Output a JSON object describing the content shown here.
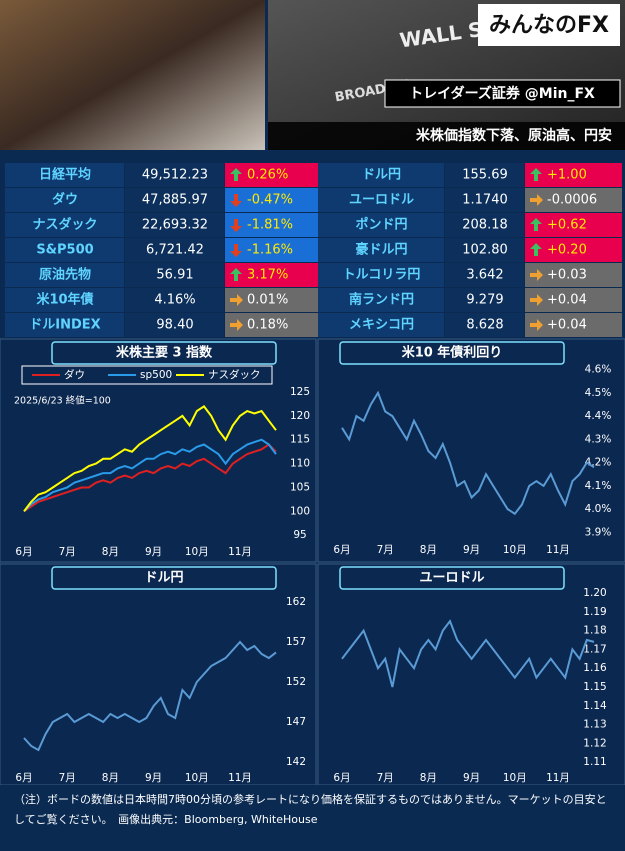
{
  "header": {
    "logo": "みんなのFX",
    "account": "トレイダーズ証券 @Min_FX",
    "headline": "米株価指数下落、原油高、円安",
    "sign1": "WALL ST",
    "sign2": "BROAD ST"
  },
  "table": {
    "left": [
      {
        "name": "日経平均",
        "value": "49,512.23",
        "change": "0.26%",
        "dir": "up"
      },
      {
        "name": "ダウ",
        "value": "47,885.97",
        "change": "-0.47%",
        "dir": "down"
      },
      {
        "name": "ナスダック",
        "value": "22,693.32",
        "change": "-1.81%",
        "dir": "down"
      },
      {
        "name": "S&P500",
        "value": "6,721.42",
        "change": "-1.16%",
        "dir": "down"
      },
      {
        "name": "原油先物",
        "value": "56.91",
        "change": "3.17%",
        "dir": "up"
      },
      {
        "name": "米10年債",
        "value": "4.16%",
        "change": "0.01%",
        "dir": "flat"
      },
      {
        "name": "ドルINDEX",
        "value": "98.40",
        "change": "0.18%",
        "dir": "flat"
      }
    ],
    "right": [
      {
        "name": "ドル円",
        "value": "155.69",
        "change": "+1.00",
        "dir": "up"
      },
      {
        "name": "ユーロドル",
        "value": "1.1740",
        "change": "-0.0006",
        "dir": "flat"
      },
      {
        "name": "ポンド円",
        "value": "208.18",
        "change": "+0.62",
        "dir": "up"
      },
      {
        "name": "豪ドル円",
        "value": "102.80",
        "change": "+0.20",
        "dir": "up"
      },
      {
        "name": "トルコリラ円",
        "value": "3.642",
        "change": "+0.03",
        "dir": "flat"
      },
      {
        "name": "南ランド円",
        "value": "9.279",
        "change": "+0.04",
        "dir": "flat"
      },
      {
        "name": "メキシコ円",
        "value": "8.628",
        "change": "+0.04",
        "dir": "flat"
      }
    ]
  },
  "chart_data": [
    {
      "type": "line",
      "title": "米株主要 3 指数",
      "annotation": "2025/6/23 終値=100",
      "categories": [
        "6月",
        null,
        null,
        null,
        null,
        null,
        "7月",
        null,
        null,
        null,
        null,
        null,
        "8月",
        null,
        null,
        null,
        null,
        null,
        "9月",
        null,
        null,
        null,
        null,
        null,
        "10月",
        null,
        null,
        null,
        null,
        null,
        "11月",
        null,
        null,
        null,
        null,
        null
      ],
      "series": [
        {
          "name": "ダウ",
          "color": "#e02020",
          "values": [
            100,
            101,
            102,
            102.5,
            103,
            103.5,
            104,
            104.5,
            105,
            105,
            106,
            106.5,
            106,
            107,
            107.5,
            107,
            108,
            108.5,
            108,
            109,
            109.5,
            109,
            110,
            109.5,
            110.5,
            111,
            110,
            109,
            108,
            110,
            111,
            112,
            112.5,
            113,
            114,
            112.5
          ]
        },
        {
          "name": "sp500",
          "color": "#2a9be8",
          "values": [
            100,
            101.5,
            102.5,
            103,
            104,
            104.5,
            105,
            106,
            106.5,
            107,
            107.5,
            108,
            108,
            109,
            109.5,
            109,
            110,
            111,
            111,
            112,
            112.5,
            112,
            113,
            112.5,
            113.5,
            114,
            113,
            112,
            110,
            112,
            113,
            114,
            114.5,
            115,
            114,
            112
          ]
        },
        {
          "name": "ナスダック",
          "color": "#ffff00",
          "values": [
            100,
            102,
            103.5,
            104,
            105,
            106,
            107,
            108,
            108.5,
            109.5,
            110,
            111,
            111,
            112,
            113,
            112.5,
            114,
            115,
            116,
            117,
            118,
            119,
            120,
            118,
            121,
            122,
            120,
            117,
            115,
            118,
            120,
            121,
            120.5,
            121,
            119,
            117
          ]
        }
      ],
      "ylim": [
        93,
        127
      ],
      "yticks": [
        95,
        100,
        105,
        110,
        115,
        120,
        125
      ]
    },
    {
      "type": "line",
      "title": "米10 年債利回り",
      "categories": [
        "6月",
        null,
        null,
        null,
        null,
        null,
        "7月",
        null,
        null,
        null,
        null,
        null,
        "8月",
        null,
        null,
        null,
        null,
        null,
        "9月",
        null,
        null,
        null,
        null,
        null,
        "10月",
        null,
        null,
        null,
        null,
        null,
        "11月",
        null,
        null,
        null,
        null,
        null
      ],
      "series": [
        {
          "color": "#5b9bd5",
          "values": [
            4.35,
            4.3,
            4.4,
            4.38,
            4.45,
            4.5,
            4.42,
            4.4,
            4.35,
            4.3,
            4.38,
            4.32,
            4.25,
            4.22,
            4.28,
            4.2,
            4.1,
            4.12,
            4.05,
            4.08,
            4.15,
            4.1,
            4.05,
            4.0,
            3.98,
            4.02,
            4.1,
            4.12,
            4.1,
            4.15,
            4.08,
            4.02,
            4.12,
            4.15,
            4.2,
            4.18
          ]
        }
      ],
      "ylim": [
        3.88,
        4.62
      ],
      "yticks": [
        {
          "value": 3.9,
          "label": "3.9%"
        },
        {
          "value": 4.0,
          "label": "4.0%"
        },
        {
          "value": 4.1,
          "label": "4.1%"
        },
        {
          "value": 4.2,
          "label": "4.2%"
        },
        {
          "value": 4.3,
          "label": "4.3%"
        },
        {
          "value": 4.4,
          "label": "4.4%"
        },
        {
          "value": 4.5,
          "label": "4.5%"
        },
        {
          "value": 4.6,
          "label": "4.6%"
        }
      ]
    },
    {
      "type": "line",
      "title": "ドル円",
      "categories": [
        "6月",
        null,
        null,
        null,
        null,
        null,
        "7月",
        null,
        null,
        null,
        null,
        null,
        "8月",
        null,
        null,
        null,
        null,
        null,
        "9月",
        null,
        null,
        null,
        null,
        null,
        "10月",
        null,
        null,
        null,
        null,
        null,
        "11月",
        null,
        null,
        null,
        null,
        null
      ],
      "series": [
        {
          "color": "#5b9bd5",
          "values": [
            145,
            144,
            143.5,
            145.5,
            147,
            147.5,
            148,
            147,
            147.5,
            148,
            147.5,
            147,
            148,
            147.5,
            148,
            147.5,
            147,
            147.5,
            149,
            150,
            148,
            147.5,
            151,
            150,
            152,
            153,
            154,
            154.5,
            155,
            156,
            157,
            156,
            156.5,
            155.5,
            155,
            155.7
          ]
        }
      ],
      "ylim": [
        140,
        164
      ],
      "yticks": [
        142,
        147,
        152,
        157,
        162
      ]
    },
    {
      "type": "line",
      "title": "ユーロドル",
      "categories": [
        "6月",
        null,
        null,
        null,
        null,
        null,
        "7月",
        null,
        null,
        null,
        null,
        null,
        "8月",
        null,
        null,
        null,
        null,
        null,
        "9月",
        null,
        null,
        null,
        null,
        null,
        "10月",
        null,
        null,
        null,
        null,
        null,
        "11月",
        null,
        null,
        null,
        null,
        null
      ],
      "series": [
        {
          "color": "#5b9bd5",
          "values": [
            1.165,
            1.17,
            1.175,
            1.18,
            1.17,
            1.16,
            1.165,
            1.15,
            1.17,
            1.165,
            1.16,
            1.17,
            1.175,
            1.17,
            1.18,
            1.185,
            1.175,
            1.17,
            1.165,
            1.17,
            1.175,
            1.17,
            1.165,
            1.16,
            1.155,
            1.16,
            1.165,
            1.155,
            1.16,
            1.165,
            1.16,
            1.155,
            1.17,
            1.165,
            1.175,
            1.174
          ]
        }
      ],
      "ylim": [
        1.105,
        1.205
      ],
      "yticks": [
        1.11,
        1.12,
        1.13,
        1.14,
        1.15,
        1.16,
        1.17,
        1.18,
        1.19,
        {
          "value": 1.2,
          "label": "1.20"
        }
      ]
    }
  ],
  "footer": "（注）ボードの数値は日本時間7時00分頃の参考レートになり価格を保証するものではありません。マーケットの目安としてご覧ください。　画像出典元：Bloomberg, WhiteHouse"
}
